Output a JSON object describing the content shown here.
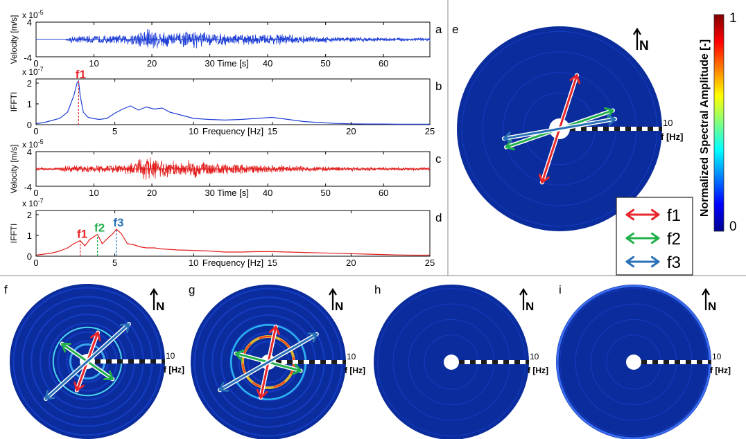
{
  "colors": {
    "blue_trace": "#1f3fd6",
    "red_trace": "#e21b1b",
    "f1": "#e8262b",
    "f2": "#22b04b",
    "f3": "#2a72b8",
    "polar_bg": "#0d2e9e",
    "dashed": "#1c1c1c"
  },
  "panels": {
    "a": "a",
    "b": "b",
    "c": "c",
    "d": "d",
    "e": "e",
    "f": "f",
    "g": "g",
    "h": "h",
    "i": "i"
  },
  "chart_data": [
    {
      "id": "a",
      "type": "line",
      "ylabel": "Velocity [m/s]",
      "xlabel": "Time [s]",
      "exponent": "x 10",
      "exponent_power": "-5",
      "xlim": [
        0,
        68
      ],
      "ylim": [
        -4,
        4
      ],
      "xticks": [
        0,
        10,
        20,
        30,
        40,
        50,
        60
      ],
      "ytick_labels": [
        "4",
        "-4"
      ],
      "color": "#1f3fd6",
      "envelope": {
        "t": [
          0,
          5,
          6,
          10,
          15,
          18,
          19,
          20,
          21,
          25,
          28,
          30,
          35,
          40,
          42,
          45,
          50,
          55,
          60,
          65,
          68
        ],
        "amp": [
          0,
          0,
          0.9,
          1.0,
          1.1,
          2.2,
          3.3,
          3.0,
          2.2,
          1.8,
          2.3,
          1.6,
          1.4,
          1.3,
          1.6,
          1.0,
          0.8,
          0.6,
          0.5,
          0.4,
          0.4
        ]
      }
    },
    {
      "id": "b",
      "type": "line",
      "ylabel": "IFFTI",
      "xlabel": "Frequency [Hz]",
      "exponent": "x 10",
      "exponent_power": "-7",
      "xlim": [
        0,
        25
      ],
      "ylim": [
        0,
        2.2
      ],
      "xticks": [
        0,
        5,
        10,
        15,
        20,
        25
      ],
      "yticks": [
        0,
        1,
        2
      ],
      "color": "#1f3fd6",
      "markers": [
        {
          "label": "f1",
          "x": 2.7,
          "color": "#e8262b"
        }
      ],
      "x": [
        0,
        0.5,
        1,
        1.5,
        2,
        2.2,
        2.4,
        2.6,
        2.7,
        2.8,
        3.0,
        3.3,
        3.6,
        4.0,
        4.5,
        5.0,
        5.5,
        6.0,
        6.5,
        7.0,
        7.5,
        8.0,
        8.5,
        9.0,
        9.5,
        10,
        11,
        12,
        13,
        14,
        15,
        16,
        17,
        18,
        19,
        20,
        21,
        22,
        23,
        24,
        25
      ],
      "y": [
        0.05,
        0.1,
        0.2,
        0.3,
        0.6,
        1.0,
        1.4,
        2.0,
        2.1,
        1.4,
        0.6,
        0.35,
        0.3,
        0.25,
        0.3,
        0.55,
        0.75,
        0.9,
        0.7,
        0.85,
        0.75,
        0.8,
        0.6,
        0.5,
        0.4,
        0.3,
        0.25,
        0.22,
        0.25,
        0.3,
        0.35,
        0.25,
        0.15,
        0.1,
        0.06,
        0.04,
        0.03,
        0.03,
        0.02,
        0.02,
        0.02
      ]
    },
    {
      "id": "c",
      "type": "line",
      "ylabel": "Velocity [m/s]",
      "xlabel": "Time [s]",
      "exponent": "x 10",
      "exponent_power": "-5",
      "xlim": [
        0,
        68
      ],
      "ylim": [
        -4,
        4
      ],
      "xticks": [
        0,
        10,
        20,
        30,
        40,
        50,
        60
      ],
      "ytick_labels": [
        "4",
        "-4"
      ],
      "color": "#e21b1b",
      "envelope": {
        "t": [
          0,
          4,
          5,
          10,
          15,
          18,
          19,
          20,
          21,
          25,
          28,
          30,
          35,
          40,
          45,
          50,
          55,
          60,
          65,
          68
        ],
        "amp": [
          0.3,
          0.3,
          0.8,
          0.9,
          1.1,
          2.5,
          3.5,
          3.3,
          2.4,
          1.8,
          2.4,
          1.6,
          1.2,
          1.0,
          0.8,
          0.6,
          0.5,
          0.4,
          0.35,
          0.35
        ]
      }
    },
    {
      "id": "d",
      "type": "line",
      "ylabel": "IFFTI",
      "xlabel": "Frequency [Hz]",
      "exponent": "x 10",
      "exponent_power": "-7",
      "xlim": [
        0,
        25
      ],
      "ylim": [
        0,
        2.2
      ],
      "xticks": [
        0,
        5,
        10,
        15,
        20,
        25
      ],
      "yticks": [
        0,
        1,
        2
      ],
      "color": "#e21b1b",
      "markers": [
        {
          "label": "f1",
          "x": 2.8,
          "color": "#e8262b"
        },
        {
          "label": "f2",
          "x": 3.9,
          "color": "#22b04b"
        },
        {
          "label": "f3",
          "x": 5.1,
          "color": "#2a72b8"
        }
      ],
      "x": [
        0,
        0.5,
        1,
        1.5,
        2,
        2.4,
        2.8,
        3.1,
        3.4,
        3.7,
        3.9,
        4.2,
        4.6,
        4.9,
        5.1,
        5.4,
        5.8,
        6.2,
        6.6,
        7.0,
        7.5,
        8,
        9,
        10,
        11,
        12,
        13,
        14,
        15,
        16,
        17,
        18,
        19,
        20,
        21,
        22,
        23,
        24,
        25
      ],
      "y": [
        0.05,
        0.1,
        0.15,
        0.25,
        0.4,
        0.6,
        0.75,
        0.5,
        0.8,
        0.95,
        1.05,
        0.6,
        0.9,
        1.1,
        1.3,
        1.1,
        0.6,
        0.55,
        0.45,
        0.4,
        0.4,
        0.35,
        0.3,
        0.28,
        0.25,
        0.2,
        0.2,
        0.22,
        0.22,
        0.2,
        0.18,
        0.16,
        0.14,
        0.12,
        0.1,
        0.08,
        0.06,
        0.05,
        0.05
      ]
    }
  ],
  "polar_panels": [
    {
      "id": "e",
      "north": "N",
      "axis_tick": "10",
      "axis_unit": "f [Hz]",
      "arrows": [
        {
          "name": "f1",
          "angle_deg": 72,
          "length": 1.0,
          "color": "#e8262b"
        },
        {
          "name": "f2",
          "angle_deg": 19,
          "length": 1.0,
          "color": "#22b04b"
        },
        {
          "name": "f3",
          "angle_deg": 10,
          "length": 1.0,
          "color": "#2a72b8"
        }
      ]
    },
    {
      "id": "f",
      "north": "N",
      "axis_tick": "10",
      "axis_unit": "f [Hz]",
      "arrows": [
        {
          "name": "f1",
          "angle_deg": 70,
          "length": 0.55,
          "color": "#e8262b"
        },
        {
          "name": "f2",
          "angle_deg": -35,
          "length": 0.55,
          "color": "#22b04b"
        },
        {
          "name": "f3",
          "angle_deg": 42,
          "length": 1.0,
          "color": "#2a72b8"
        }
      ]
    },
    {
      "id": "g",
      "north": "N",
      "axis_tick": "10",
      "axis_unit": "f [Hz]",
      "arrows": [
        {
          "name": "f1",
          "angle_deg": 78,
          "length": 0.65,
          "color": "#e8262b"
        },
        {
          "name": "f2",
          "angle_deg": -15,
          "length": 0.6,
          "color": "#22b04b"
        },
        {
          "name": "f3",
          "angle_deg": 30,
          "length": 1.0,
          "color": "#2a72b8"
        }
      ]
    },
    {
      "id": "h",
      "north": "N",
      "axis_tick": "10",
      "axis_unit": "f [Hz]",
      "arrows": []
    },
    {
      "id": "i",
      "north": "N",
      "axis_tick": "10",
      "axis_unit": "f [Hz]",
      "arrows": []
    }
  ],
  "legend": {
    "items": [
      {
        "label": "f1",
        "color": "#e8262b"
      },
      {
        "label": "f2",
        "color": "#22b04b"
      },
      {
        "label": "f3",
        "color": "#2a72b8"
      }
    ]
  },
  "colorbar": {
    "title": "Normalized Spectral Amplitude [-]",
    "max_label": "1",
    "min_label": "0",
    "colormap": "jet"
  }
}
